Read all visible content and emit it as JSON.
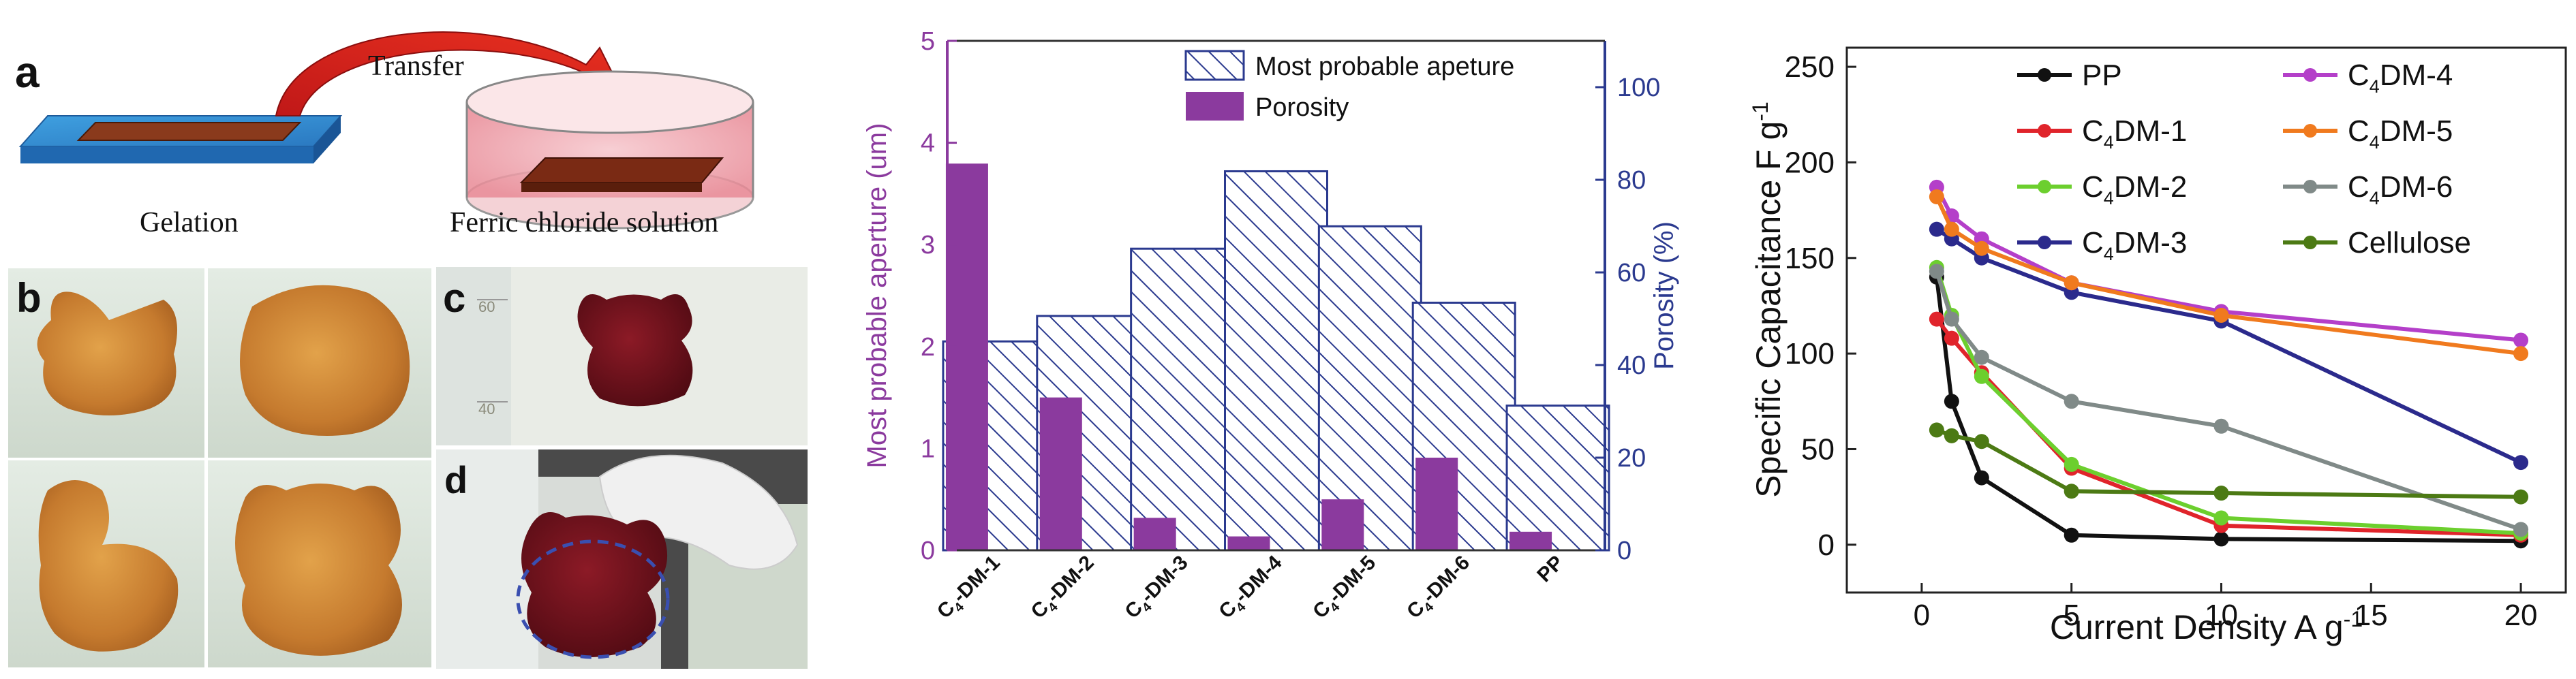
{
  "panel_a": {
    "label": "a",
    "transfer_label": "Transfer",
    "gelation_label": "Gelation",
    "solution_label": "Ferric chloride solution"
  },
  "panel_b": {
    "label": "b"
  },
  "panel_c": {
    "label": "c",
    "scale_top": "60",
    "scale_bottom": "40"
  },
  "panel_d": {
    "label": "d"
  },
  "colors": {
    "aperture": "#2b3a8f",
    "porosity": "#8b3a9e",
    "PP": "#111111",
    "C4DM-1": "#e0242b",
    "C4DM-2": "#6ccf2e",
    "C4DM-3": "#2b2a8c",
    "C4DM-4": "#b43fc9",
    "C4DM-5": "#f07a1e",
    "C4DM-6": "#808a88",
    "Cellulose": "#4c7a14"
  },
  "chart_data": [
    {
      "type": "bar",
      "categories": [
        "C4DM-1",
        "C4DM-2",
        "C4DM-3",
        "C4DM-4",
        "C4DM-5",
        "C4DM-6",
        "PP"
      ],
      "category_labels": [
        {
          "main": "C",
          "sub": "4",
          "rest": "-DM-1"
        },
        {
          "main": "C",
          "sub": "4",
          "rest": "-DM-2"
        },
        {
          "main": "C",
          "sub": "4",
          "rest": "-DM-3"
        },
        {
          "main": "C",
          "sub": "4",
          "rest": "-DM-4"
        },
        {
          "main": "C",
          "sub": "4",
          "rest": "-DM-5"
        },
        {
          "main": "C",
          "sub": "4",
          "rest": "-DM-6"
        },
        {
          "main": "PP",
          "sub": "",
          "rest": ""
        }
      ],
      "series": [
        {
          "name": "Most probable apeture",
          "axis": "left",
          "values": [
            2.05,
            2.3,
            2.96,
            3.72,
            3.18,
            2.43,
            1.42
          ]
        },
        {
          "name": "Porosity",
          "axis": "right",
          "values": [
            83.5,
            33,
            7,
            3,
            11,
            20,
            4
          ]
        }
      ],
      "ylabel": "Most probable aperture (um)",
      "y2label": "Porosity (%)",
      "ylim": [
        0,
        5
      ],
      "y2lim": [
        0,
        110
      ],
      "yticks": [
        0,
        1,
        2,
        3,
        4,
        5
      ],
      "y2ticks": [
        0,
        20,
        40,
        60,
        80,
        100
      ],
      "legend": "top-right"
    },
    {
      "type": "line",
      "xlabel": "Current Density A g",
      "xlabel_sup": "-1",
      "ylabel": "Specific Capacitance F g",
      "ylabel_sup": "-1",
      "xlim": [
        -2.5,
        21.5
      ],
      "ylim": [
        -25,
        260
      ],
      "xticks": [
        0,
        5,
        10,
        15,
        20
      ],
      "yticks": [
        0,
        50,
        100,
        150,
        200,
        250
      ],
      "x": [
        0.5,
        1,
        2,
        5,
        10,
        20
      ],
      "legend": "top-right",
      "series": [
        {
          "name": "PP",
          "label": {
            "main": "PP",
            "sub": "",
            "rest": ""
          },
          "values": [
            140,
            75,
            35,
            5,
            3,
            2
          ]
        },
        {
          "name": "C4DM-1",
          "label": {
            "main": "C",
            "sub": "4",
            "rest": "DM-1"
          },
          "values": [
            118,
            108,
            90,
            40,
            10,
            5
          ]
        },
        {
          "name": "C4DM-2",
          "label": {
            "main": "C",
            "sub": "4",
            "rest": "DM-2"
          },
          "values": [
            145,
            120,
            88,
            42,
            14,
            6
          ]
        },
        {
          "name": "C4DM-3",
          "label": {
            "main": "C",
            "sub": "4",
            "rest": "DM-3"
          },
          "values": [
            165,
            160,
            150,
            132,
            117,
            43
          ]
        },
        {
          "name": "C4DM-4",
          "label": {
            "main": "C",
            "sub": "4",
            "rest": "DM-4"
          },
          "values": [
            187,
            172,
            160,
            137,
            122,
            107
          ]
        },
        {
          "name": "C4DM-5",
          "label": {
            "main": "C",
            "sub": "4",
            "rest": "DM-5"
          },
          "values": [
            182,
            165,
            155,
            137,
            120,
            100
          ]
        },
        {
          "name": "C4DM-6",
          "label": {
            "main": "C",
            "sub": "4",
            "rest": "DM-6"
          },
          "values": [
            143,
            118,
            98,
            75,
            62,
            8
          ]
        },
        {
          "name": "Cellulose",
          "label": {
            "main": "Cellulose",
            "sub": "",
            "rest": ""
          },
          "values": [
            60,
            57,
            54,
            28,
            27,
            25
          ]
        }
      ]
    }
  ]
}
